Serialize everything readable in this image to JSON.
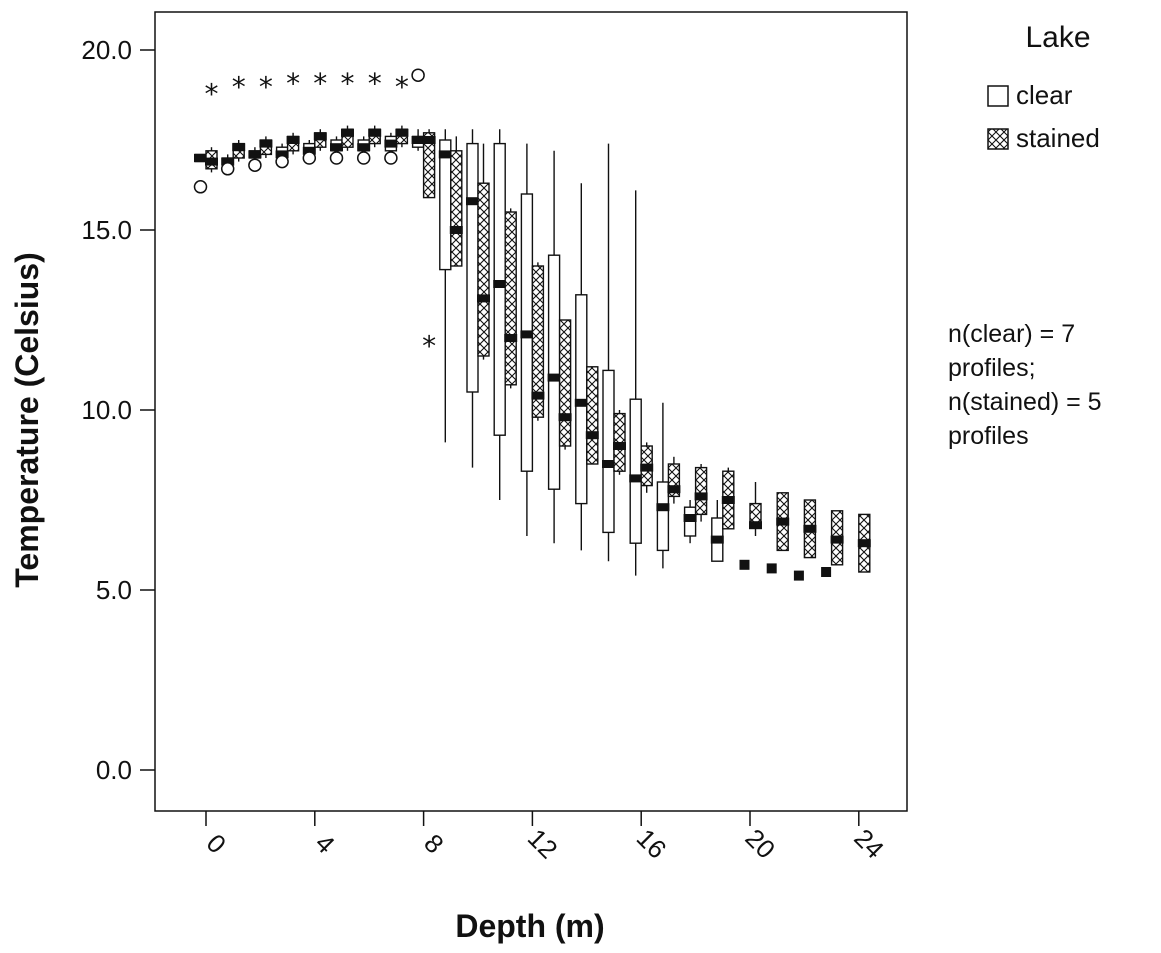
{
  "chart_data": {
    "type": "box",
    "xlabel": "Depth (m)",
    "ylabel": "Temperature (Celsius)",
    "ylim": [
      0,
      20
    ],
    "y_ticks": [
      "0.0",
      "5.0",
      "10.0",
      "15.0",
      "20.0"
    ],
    "x_ticks": [
      "0",
      "4",
      "8",
      "12",
      "16",
      "20",
      "24"
    ],
    "legend": {
      "title": "Lake",
      "position": "top-right",
      "items": [
        {
          "name": "clear",
          "fill": "open"
        },
        {
          "name": "stained",
          "fill": "hatched"
        }
      ]
    },
    "annotation": [
      "n(clear) = 7",
      "profiles;",
      "n(stained) = 5",
      "profiles"
    ],
    "series": [
      {
        "name": "clear",
        "boxes": [
          {
            "depth": 0,
            "lo": 16.9,
            "q1": 16.9,
            "median": 17.0,
            "q3": 17.1,
            "hi": 17.1
          },
          {
            "depth": 1,
            "lo": 16.9,
            "q1": 16.9,
            "median": 16.9,
            "q3": 17.0,
            "hi": 17.1
          },
          {
            "depth": 2,
            "lo": 17.0,
            "q1": 17.0,
            "median": 17.1,
            "q3": 17.2,
            "hi": 17.3
          },
          {
            "depth": 3,
            "lo": 17.0,
            "q1": 17.1,
            "median": 17.1,
            "q3": 17.3,
            "hi": 17.4
          },
          {
            "depth": 4,
            "lo": 17.1,
            "q1": 17.2,
            "median": 17.2,
            "q3": 17.4,
            "hi": 17.5
          },
          {
            "depth": 5,
            "lo": 17.1,
            "q1": 17.2,
            "median": 17.3,
            "q3": 17.5,
            "hi": 17.6
          },
          {
            "depth": 6,
            "lo": 17.1,
            "q1": 17.2,
            "median": 17.3,
            "q3": 17.5,
            "hi": 17.6
          },
          {
            "depth": 7,
            "lo": 17.1,
            "q1": 17.2,
            "median": 17.4,
            "q3": 17.6,
            "hi": 17.7
          },
          {
            "depth": 8,
            "lo": 17.2,
            "q1": 17.3,
            "median": 17.5,
            "q3": 17.6,
            "hi": 17.8
          },
          {
            "depth": 9,
            "lo": 9.1,
            "q1": 13.9,
            "median": 17.1,
            "q3": 17.5,
            "hi": 17.8
          },
          {
            "depth": 10,
            "lo": 8.4,
            "q1": 10.5,
            "median": 15.8,
            "q3": 17.4,
            "hi": 17.8
          },
          {
            "depth": 11,
            "lo": 7.5,
            "q1": 9.3,
            "median": 13.5,
            "q3": 17.4,
            "hi": 17.8
          },
          {
            "depth": 12,
            "lo": 6.5,
            "q1": 8.3,
            "median": 12.1,
            "q3": 16.0,
            "hi": 17.4
          },
          {
            "depth": 13,
            "lo": 6.3,
            "q1": 7.8,
            "median": 10.9,
            "q3": 14.3,
            "hi": 17.2
          },
          {
            "depth": 14,
            "lo": 6.1,
            "q1": 7.4,
            "median": 10.2,
            "q3": 13.2,
            "hi": 16.3
          },
          {
            "depth": 15,
            "lo": 5.8,
            "q1": 6.6,
            "median": 8.5,
            "q3": 11.1,
            "hi": 17.4
          },
          {
            "depth": 16,
            "lo": 5.4,
            "q1": 6.3,
            "median": 8.1,
            "q3": 10.3,
            "hi": 16.1
          },
          {
            "depth": 17,
            "lo": 5.6,
            "q1": 6.1,
            "median": 7.3,
            "q3": 8.0,
            "hi": 10.2
          },
          {
            "depth": 18,
            "lo": 6.3,
            "q1": 6.5,
            "median": 7.0,
            "q3": 7.3,
            "hi": 7.5
          },
          {
            "depth": 19,
            "lo": 5.8,
            "q1": 5.8,
            "median": 6.4,
            "q3": 7.0,
            "hi": 7.5
          }
        ],
        "outliers": [
          {
            "depth": 0,
            "value": 16.2,
            "marker": "circle"
          },
          {
            "depth": 1,
            "value": 16.7,
            "marker": "circle"
          },
          {
            "depth": 2,
            "value": 16.8,
            "marker": "circle"
          },
          {
            "depth": 3,
            "value": 16.9,
            "marker": "circle"
          },
          {
            "depth": 4,
            "value": 17.0,
            "marker": "circle"
          },
          {
            "depth": 5,
            "value": 17.0,
            "marker": "circle"
          },
          {
            "depth": 6,
            "value": 17.0,
            "marker": "circle"
          },
          {
            "depth": 7,
            "value": 17.0,
            "marker": "circle"
          },
          {
            "depth": 8,
            "value": 19.3,
            "marker": "circle"
          },
          {
            "depth": 20,
            "value": 5.7,
            "marker": "square"
          },
          {
            "depth": 21,
            "value": 5.6,
            "marker": "square"
          },
          {
            "depth": 22,
            "value": 5.4,
            "marker": "square"
          },
          {
            "depth": 23,
            "value": 5.5,
            "marker": "square"
          }
        ]
      },
      {
        "name": "stained",
        "boxes": [
          {
            "depth": 0,
            "lo": 16.6,
            "q1": 16.7,
            "median": 16.9,
            "q3": 17.2,
            "hi": 17.3
          },
          {
            "depth": 1,
            "lo": 16.9,
            "q1": 17.0,
            "median": 17.3,
            "q3": 17.4,
            "hi": 17.5
          },
          {
            "depth": 2,
            "lo": 17.0,
            "q1": 17.1,
            "median": 17.4,
            "q3": 17.5,
            "hi": 17.6
          },
          {
            "depth": 3,
            "lo": 17.1,
            "q1": 17.2,
            "median": 17.5,
            "q3": 17.6,
            "hi": 17.7
          },
          {
            "depth": 4,
            "lo": 17.2,
            "q1": 17.3,
            "median": 17.6,
            "q3": 17.7,
            "hi": 17.8
          },
          {
            "depth": 5,
            "lo": 17.2,
            "q1": 17.3,
            "median": 17.7,
            "q3": 17.8,
            "hi": 17.9
          },
          {
            "depth": 6,
            "lo": 17.3,
            "q1": 17.4,
            "median": 17.7,
            "q3": 17.8,
            "hi": 17.9
          },
          {
            "depth": 7,
            "lo": 17.3,
            "q1": 17.4,
            "median": 17.7,
            "q3": 17.8,
            "hi": 17.9
          },
          {
            "depth": 8,
            "lo": 15.9,
            "q1": 15.9,
            "median": 17.5,
            "q3": 17.7,
            "hi": 17.8
          },
          {
            "depth": 9,
            "lo": 14.0,
            "q1": 14.0,
            "median": 15.0,
            "q3": 17.2,
            "hi": 17.6
          },
          {
            "depth": 10,
            "lo": 11.4,
            "q1": 11.5,
            "median": 13.1,
            "q3": 16.3,
            "hi": 17.4
          },
          {
            "depth": 11,
            "lo": 10.6,
            "q1": 10.7,
            "median": 12.0,
            "q3": 15.5,
            "hi": 15.6
          },
          {
            "depth": 12,
            "lo": 9.7,
            "q1": 9.8,
            "median": 10.4,
            "q3": 14.0,
            "hi": 14.1
          },
          {
            "depth": 13,
            "lo": 8.9,
            "q1": 9.0,
            "median": 9.8,
            "q3": 12.5,
            "hi": 12.5
          },
          {
            "depth": 14,
            "lo": 8.5,
            "q1": 8.5,
            "median": 9.3,
            "q3": 11.2,
            "hi": 11.2
          },
          {
            "depth": 15,
            "lo": 8.2,
            "q1": 8.3,
            "median": 9.0,
            "q3": 9.9,
            "hi": 10.0
          },
          {
            "depth": 16,
            "lo": 7.7,
            "q1": 7.9,
            "median": 8.4,
            "q3": 9.0,
            "hi": 9.1
          },
          {
            "depth": 17,
            "lo": 7.4,
            "q1": 7.6,
            "median": 7.8,
            "q3": 8.5,
            "hi": 8.7
          },
          {
            "depth": 18,
            "lo": 6.9,
            "q1": 7.1,
            "median": 7.6,
            "q3": 8.4,
            "hi": 8.5
          },
          {
            "depth": 19,
            "lo": 6.7,
            "q1": 6.7,
            "median": 7.5,
            "q3": 8.3,
            "hi": 8.4
          },
          {
            "depth": 20,
            "lo": 6.5,
            "q1": 6.8,
            "median": 6.8,
            "q3": 7.4,
            "hi": 8.0
          },
          {
            "depth": 21,
            "lo": 6.1,
            "q1": 6.1,
            "median": 6.9,
            "q3": 7.7,
            "hi": 7.7
          },
          {
            "depth": 22,
            "lo": 5.9,
            "q1": 5.9,
            "median": 6.7,
            "q3": 7.5,
            "hi": 7.5
          },
          {
            "depth": 23,
            "lo": 5.7,
            "q1": 5.7,
            "median": 6.4,
            "q3": 7.2,
            "hi": 7.2
          },
          {
            "depth": 24,
            "lo": 5.5,
            "q1": 5.5,
            "median": 6.3,
            "q3": 7.1,
            "hi": 7.1
          }
        ],
        "outliers": [
          {
            "depth": 0,
            "value": 18.9,
            "marker": "star"
          },
          {
            "depth": 1,
            "value": 19.1,
            "marker": "star"
          },
          {
            "depth": 2,
            "value": 19.1,
            "marker": "star"
          },
          {
            "depth": 3,
            "value": 19.2,
            "marker": "star"
          },
          {
            "depth": 4,
            "value": 19.2,
            "marker": "star"
          },
          {
            "depth": 5,
            "value": 19.2,
            "marker": "star"
          },
          {
            "depth": 6,
            "value": 19.2,
            "marker": "star"
          },
          {
            "depth": 7,
            "value": 19.1,
            "marker": "star"
          },
          {
            "depth": 8,
            "value": 11.9,
            "marker": "star"
          }
        ]
      }
    ]
  }
}
